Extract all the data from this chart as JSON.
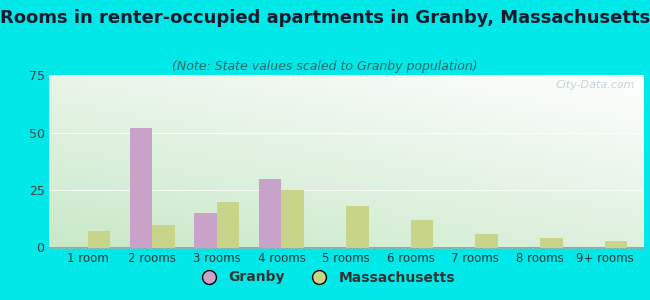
{
  "categories": [
    "1 room",
    "2 rooms",
    "3 rooms",
    "4 rooms",
    "5 rooms",
    "6 rooms",
    "7 rooms",
    "8 rooms",
    "9+ rooms"
  ],
  "granby_values": [
    0,
    52,
    15,
    30,
    0,
    0,
    0,
    0,
    0
  ],
  "ma_values": [
    7,
    10,
    20,
    25,
    18,
    12,
    6,
    4,
    3
  ],
  "granby_color": "#c8a2c8",
  "ma_color": "#c8d48a",
  "title": "Rooms in renter-occupied apartments in Granby, Massachusetts",
  "subtitle": "(Note: State values scaled to Granby population)",
  "title_fontsize": 13,
  "subtitle_fontsize": 9,
  "ylim": [
    0,
    75
  ],
  "yticks": [
    0,
    25,
    50,
    75
  ],
  "background_color": "#00e8e8",
  "bar_width": 0.35,
  "legend_granby": "Granby",
  "legend_ma": "Massachusetts",
  "watermark": "City-Data.com"
}
